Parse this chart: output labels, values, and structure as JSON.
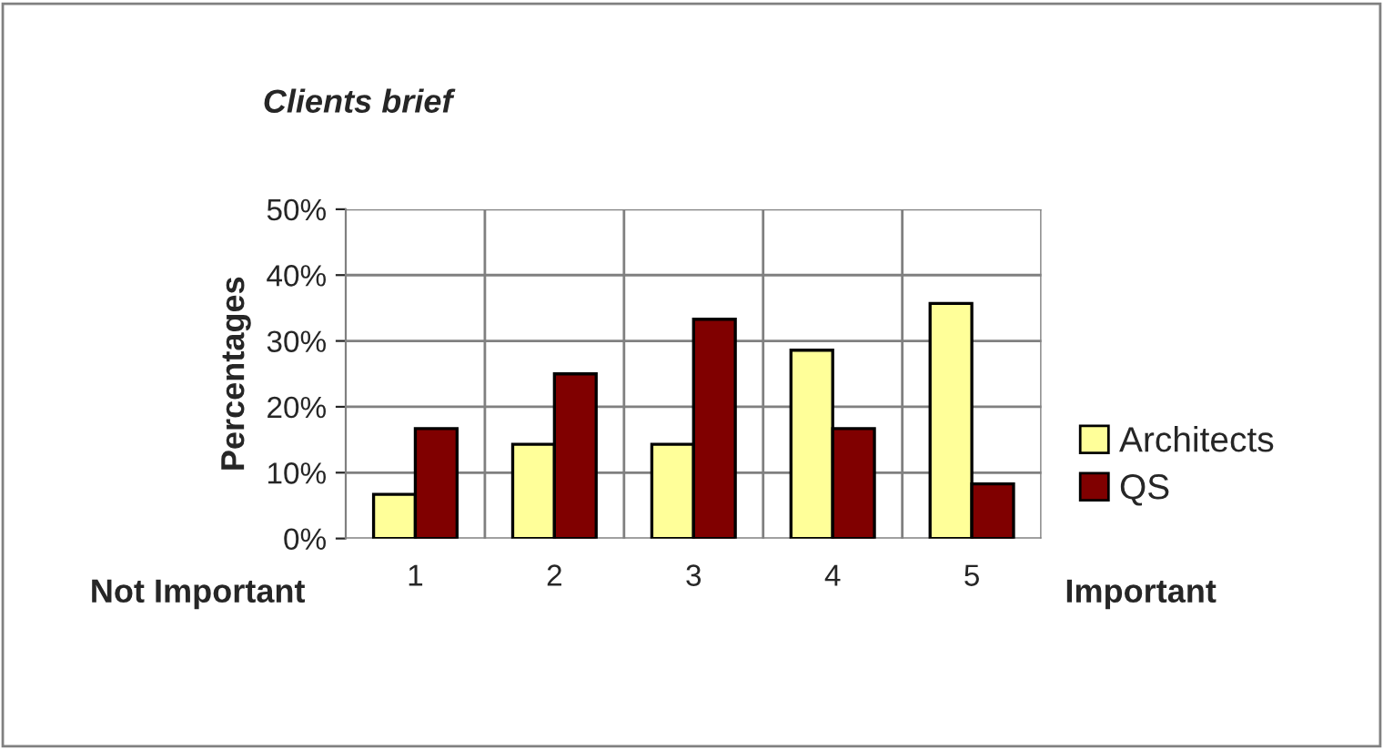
{
  "chart_data": {
    "type": "bar",
    "title": "Clients brief",
    "ylabel": "Percentages",
    "categories": [
      "1",
      "2",
      "3",
      "4",
      "5"
    ],
    "series": [
      {
        "name": "Architects",
        "color": "#ffff99",
        "values": [
          6.7,
          14.3,
          14.3,
          28.6,
          35.7
        ]
      },
      {
        "name": "QS",
        "color": "#800000",
        "values": [
          16.7,
          25,
          33.3,
          16.7,
          8.3
        ]
      }
    ],
    "ylim": [
      0,
      50
    ],
    "yticks": [
      {
        "value": 0,
        "label": "0%"
      },
      {
        "value": 10,
        "label": "10%"
      },
      {
        "value": 20,
        "label": "20%"
      },
      {
        "value": 30,
        "label": "30%"
      },
      {
        "value": 40,
        "label": "40%"
      },
      {
        "value": 50,
        "label": "50%"
      }
    ],
    "grid": true,
    "legend": "right",
    "annotations": [
      "Not Important",
      "Important"
    ]
  }
}
